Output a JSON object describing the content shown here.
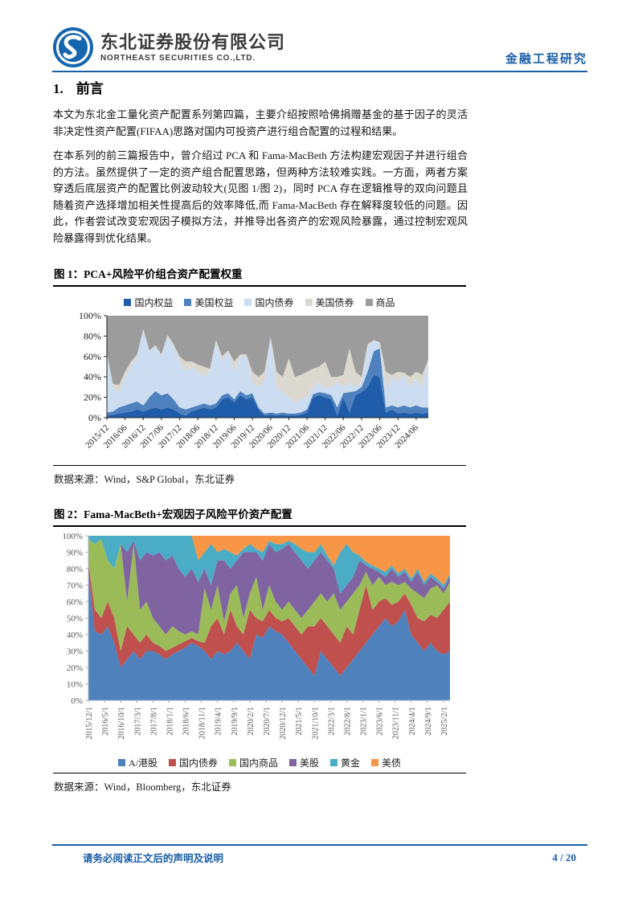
{
  "colors": {
    "accent_blue": "#1a5ea8",
    "logo_blue": "#1566ae",
    "text_dark": "#141414"
  },
  "header": {
    "company_cn": "东北证券股份有限公司",
    "company_en": "NORTHEAST SECURITIES CO.,LTD.",
    "report_type": "金融工程研究"
  },
  "section": {
    "number": "1.",
    "title": "前言"
  },
  "paragraphs": {
    "p1": "本文为东北金工量化资产配置系列第四篇，主要介绍按照哈佛捐赠基金的基于因子的灵活非决定性资产配置(FIFAA)思路对国内可投资产进行组合配置的过程和结果。",
    "p2": "在本系列的前三篇报告中，曾介绍过 PCA 和 Fama-MacBeth 方法构建宏观因子并进行组合的方法。虽然提供了一定的资产组合配置思路，但两种方法较难实践。一方面，两者方案穿透后底层资产的配置比例波动较大(见图 1/图 2)，同时 PCA 存在逻辑推导的双向问题且随着资产选择增加相关性提高后的效率降低,而 Fama-MacBeth 存在解释度较低的问题。因此，作者尝试改变宏观因子模拟方法，并推导出各资产的宏观风险暴露，通过控制宏观风险暴露得到优化结果。"
  },
  "figure1": {
    "title": "图 1：PCA+风险平价组合资产配置权重",
    "source": "数据来源：Wind，S&P Global，东北证券",
    "chart_data": {
      "type": "area",
      "stacked": true,
      "unit": "%",
      "ylim": [
        0,
        100
      ],
      "yticks": [
        0,
        20,
        40,
        60,
        80,
        100
      ],
      "legend_position": "top",
      "x_months_per_point": 2,
      "x_months_per_tick": 6,
      "x_tick_labels": [
        "2015/12",
        "2016/06",
        "2016/12",
        "2017/06",
        "2017/12",
        "2018/06",
        "2018/12",
        "2019/06",
        "2019/12",
        "2020/06",
        "2020/12",
        "2021/06",
        "2021/12",
        "2022/06",
        "2022/12",
        "2023/06",
        "2023/12",
        "2024/06"
      ],
      "series": [
        {
          "name": "国内权益",
          "color": "#1F5CA9",
          "values": [
            2,
            3,
            4,
            5,
            6,
            8,
            6,
            8,
            10,
            8,
            10,
            8,
            4,
            2,
            6,
            8,
            10,
            8,
            10,
            18,
            20,
            15,
            22,
            18,
            20,
            8,
            2,
            3,
            2,
            3,
            2,
            2,
            3,
            5,
            20,
            22,
            20,
            18,
            2,
            20,
            5,
            22,
            25,
            30,
            42,
            40,
            5,
            8,
            4,
            5,
            4,
            5,
            4,
            5
          ]
        },
        {
          "name": "美国权益",
          "color": "#4E81BD",
          "values": [
            3,
            3,
            6,
            7,
            8,
            8,
            6,
            12,
            16,
            14,
            14,
            10,
            6,
            6,
            4,
            4,
            4,
            4,
            4,
            4,
            4,
            3,
            4,
            4,
            4,
            2,
            2,
            2,
            2,
            2,
            2,
            2,
            2,
            3,
            3,
            3,
            4,
            4,
            8,
            4,
            20,
            4,
            5,
            15,
            23,
            28,
            5,
            4,
            6,
            7,
            6,
            7,
            6,
            5
          ]
        },
        {
          "name": "国内债券",
          "color": "#CCDDF1",
          "values": [
            57,
            24,
            15,
            28,
            36,
            44,
            74,
            45,
            44,
            38,
            56,
            52,
            45,
            37,
            40,
            33,
            26,
            33,
            61,
            33,
            41,
            27,
            34,
            38,
            11,
            20,
            31,
            73,
            26,
            20,
            16,
            11,
            13,
            12,
            7,
            10,
            4,
            8,
            25,
            6,
            10,
            4,
            5,
            25,
            10,
            5,
            18,
            28,
            25,
            30,
            20,
            26,
            20,
            45
          ]
        },
        {
          "name": "美国债券",
          "color": "#DBD8D0",
          "values": [
            1,
            3,
            7,
            5,
            5,
            2,
            1,
            1,
            1,
            2,
            1,
            2,
            5,
            10,
            5,
            7,
            10,
            3,
            1,
            5,
            1,
            10,
            2,
            2,
            10,
            10,
            10,
            1,
            15,
            15,
            38,
            25,
            24,
            25,
            18,
            15,
            27,
            10,
            5,
            12,
            33,
            15,
            5,
            2,
            1,
            1,
            17,
            2,
            10,
            2,
            10,
            7,
            12,
            2
          ]
        },
        {
          "name": "商品",
          "color": "#9C9C9C",
          "values": [
            37,
            67,
            68,
            55,
            45,
            38,
            13,
            34,
            29,
            38,
            19,
            28,
            40,
            45,
            45,
            48,
            50,
            52,
            24,
            40,
            34,
            45,
            38,
            38,
            55,
            60,
            55,
            21,
            55,
            60,
            42,
            60,
            58,
            55,
            52,
            50,
            45,
            60,
            60,
            58,
            32,
            55,
            60,
            28,
            24,
            26,
            55,
            58,
            55,
            56,
            60,
            55,
            58,
            43
          ]
        }
      ]
    }
  },
  "figure2": {
    "title": "图 2：Fama-MacBeth+宏观因子风险平价资产配置",
    "source": "数据来源：Wind，Bloomberg，东北证券",
    "chart_data": {
      "type": "area",
      "stacked": true,
      "unit": "%",
      "ylim": [
        0,
        100
      ],
      "yticks": [
        0,
        10,
        20,
        30,
        40,
        50,
        60,
        70,
        80,
        90,
        100
      ],
      "legend_position": "bottom",
      "x_months_per_point": 2,
      "x_months_per_tick": 5,
      "x_tick_labels": [
        "2015/12/1",
        "2016/5/1",
        "2016/10/1",
        "2017/3/1",
        "2017/8/1",
        "2018/1/1",
        "2018/6/1",
        "2018/11/1",
        "2019/4/1",
        "2019/9/1",
        "2020/2/1",
        "2020/7/1",
        "2020/12/1",
        "2021/5/1",
        "2021/10/1",
        "2022/3/1",
        "2022/8/1",
        "2023/1/1",
        "2023/6/1",
        "2023/11/1",
        "2024/4/1",
        "2024/9/1",
        "2025/2/1"
      ],
      "series": [
        {
          "name": "A/港股",
          "color": "#4F81BD",
          "values": [
            78,
            42,
            40,
            45,
            35,
            20,
            25,
            30,
            25,
            30,
            30,
            28,
            25,
            28,
            30,
            32,
            35,
            33,
            30,
            25,
            30,
            28,
            30,
            35,
            30,
            25,
            40,
            38,
            45,
            42,
            40,
            35,
            30,
            25,
            20,
            15,
            30,
            25,
            20,
            15,
            20,
            25,
            30,
            35,
            40,
            45,
            50,
            45,
            48,
            55,
            40,
            35,
            30,
            35,
            30,
            28,
            30
          ]
        },
        {
          "name": "国内债券",
          "color": "#C0504D",
          "values": [
            6,
            13,
            10,
            15,
            15,
            10,
            20,
            10,
            10,
            10,
            5,
            5,
            5,
            4,
            4,
            4,
            3,
            3,
            5,
            20,
            20,
            12,
            25,
            10,
            10,
            30,
            10,
            10,
            10,
            8,
            8,
            15,
            15,
            15,
            25,
            30,
            20,
            20,
            20,
            20,
            25,
            15,
            25,
            35,
            15,
            15,
            12,
            13,
            12,
            10,
            18,
            15,
            18,
            17,
            20,
            27,
            30
          ]
        },
        {
          "name": "国内商品",
          "color": "#9BBB59",
          "values": [
            14,
            40,
            48,
            25,
            30,
            65,
            15,
            55,
            20,
            20,
            15,
            12,
            10,
            13,
            8,
            4,
            4,
            4,
            33,
            10,
            20,
            8,
            10,
            25,
            10,
            10,
            25,
            7,
            15,
            10,
            7,
            10,
            10,
            10,
            10,
            15,
            15,
            15,
            25,
            20,
            15,
            25,
            15,
            8,
            15,
            15,
            8,
            14,
            10,
            7,
            10,
            15,
            14,
            16,
            20,
            10,
            12
          ]
        },
        {
          "name": "美股",
          "color": "#8064A2",
          "values": [
            0,
            0,
            0,
            0,
            0,
            0,
            30,
            2,
            30,
            30,
            38,
            45,
            45,
            43,
            38,
            35,
            38,
            32,
            12,
            15,
            15,
            37,
            15,
            15,
            40,
            25,
            15,
            30,
            25,
            30,
            37,
            35,
            35,
            35,
            25,
            25,
            25,
            25,
            15,
            10,
            10,
            10,
            15,
            4,
            10,
            3,
            5,
            8,
            5,
            6,
            4,
            13,
            8,
            7,
            2,
            3,
            3
          ]
        },
        {
          "name": "黄金",
          "color": "#4BACC6",
          "values": [
            2,
            5,
            2,
            15,
            20,
            5,
            10,
            3,
            15,
            10,
            12,
            10,
            15,
            12,
            20,
            25,
            20,
            13,
            10,
            25,
            5,
            7,
            10,
            3,
            2,
            5,
            2,
            5,
            2,
            5,
            3,
            2,
            5,
            7,
            10,
            5,
            5,
            3,
            2,
            25,
            25,
            15,
            3,
            2,
            2,
            2,
            3,
            2,
            2,
            2,
            2,
            2,
            2,
            2,
            2,
            2,
            2
          ]
        },
        {
          "name": "美债",
          "color": "#F79646",
          "values": [
            0,
            0,
            0,
            0,
            0,
            0,
            0,
            0,
            0,
            0,
            0,
            0,
            0,
            0,
            0,
            0,
            0,
            15,
            10,
            5,
            10,
            8,
            10,
            12,
            8,
            5,
            8,
            10,
            3,
            5,
            5,
            3,
            5,
            8,
            10,
            10,
            5,
            12,
            18,
            10,
            5,
            10,
            12,
            16,
            18,
            20,
            22,
            18,
            23,
            20,
            26,
            20,
            28,
            23,
            26,
            30,
            23
          ]
        }
      ]
    }
  },
  "footer": {
    "disclaimer": "请务必阅读正文后的声明及说明",
    "page": "4 / 20"
  }
}
